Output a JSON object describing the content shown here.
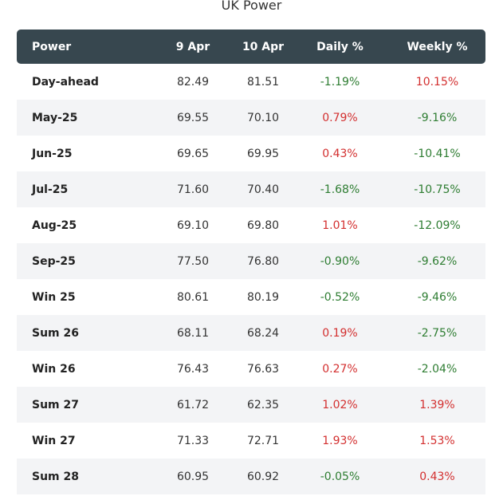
{
  "title": "UK Power",
  "colors": {
    "header_bg": "#37474f",
    "positive": "#d32f2f",
    "negative": "#2e7d32",
    "stripe": "#f3f4f6"
  },
  "chart_data": {
    "type": "table",
    "title": "UK Power",
    "columns": [
      "Power",
      "9 Apr",
      "10 Apr",
      "Daily %",
      "Weekly %"
    ],
    "rows": [
      [
        "Day-ahead",
        "82.49",
        "81.51",
        "-1.19%",
        "10.15%"
      ],
      [
        "May-25",
        "69.55",
        "70.10",
        "0.79%",
        "-9.16%"
      ],
      [
        "Jun-25",
        "69.65",
        "69.95",
        "0.43%",
        "-10.41%"
      ],
      [
        "Jul-25",
        "71.60",
        "70.40",
        "-1.68%",
        "-10.75%"
      ],
      [
        "Aug-25",
        "69.10",
        "69.80",
        "1.01%",
        "-12.09%"
      ],
      [
        "Sep-25",
        "77.50",
        "76.80",
        "-0.90%",
        "-9.62%"
      ],
      [
        "Win 25",
        "80.61",
        "80.19",
        "-0.52%",
        "-9.46%"
      ],
      [
        "Sum 26",
        "68.11",
        "68.24",
        "0.19%",
        "-2.75%"
      ],
      [
        "Win 26",
        "76.43",
        "76.63",
        "0.27%",
        "-2.04%"
      ],
      [
        "Sum 27",
        "61.72",
        "62.35",
        "1.02%",
        "1.39%"
      ],
      [
        "Win 27",
        "71.33",
        "72.71",
        "1.93%",
        "1.53%"
      ],
      [
        "Sum 28",
        "60.95",
        "60.92",
        "-0.05%",
        "0.43%"
      ]
    ]
  }
}
